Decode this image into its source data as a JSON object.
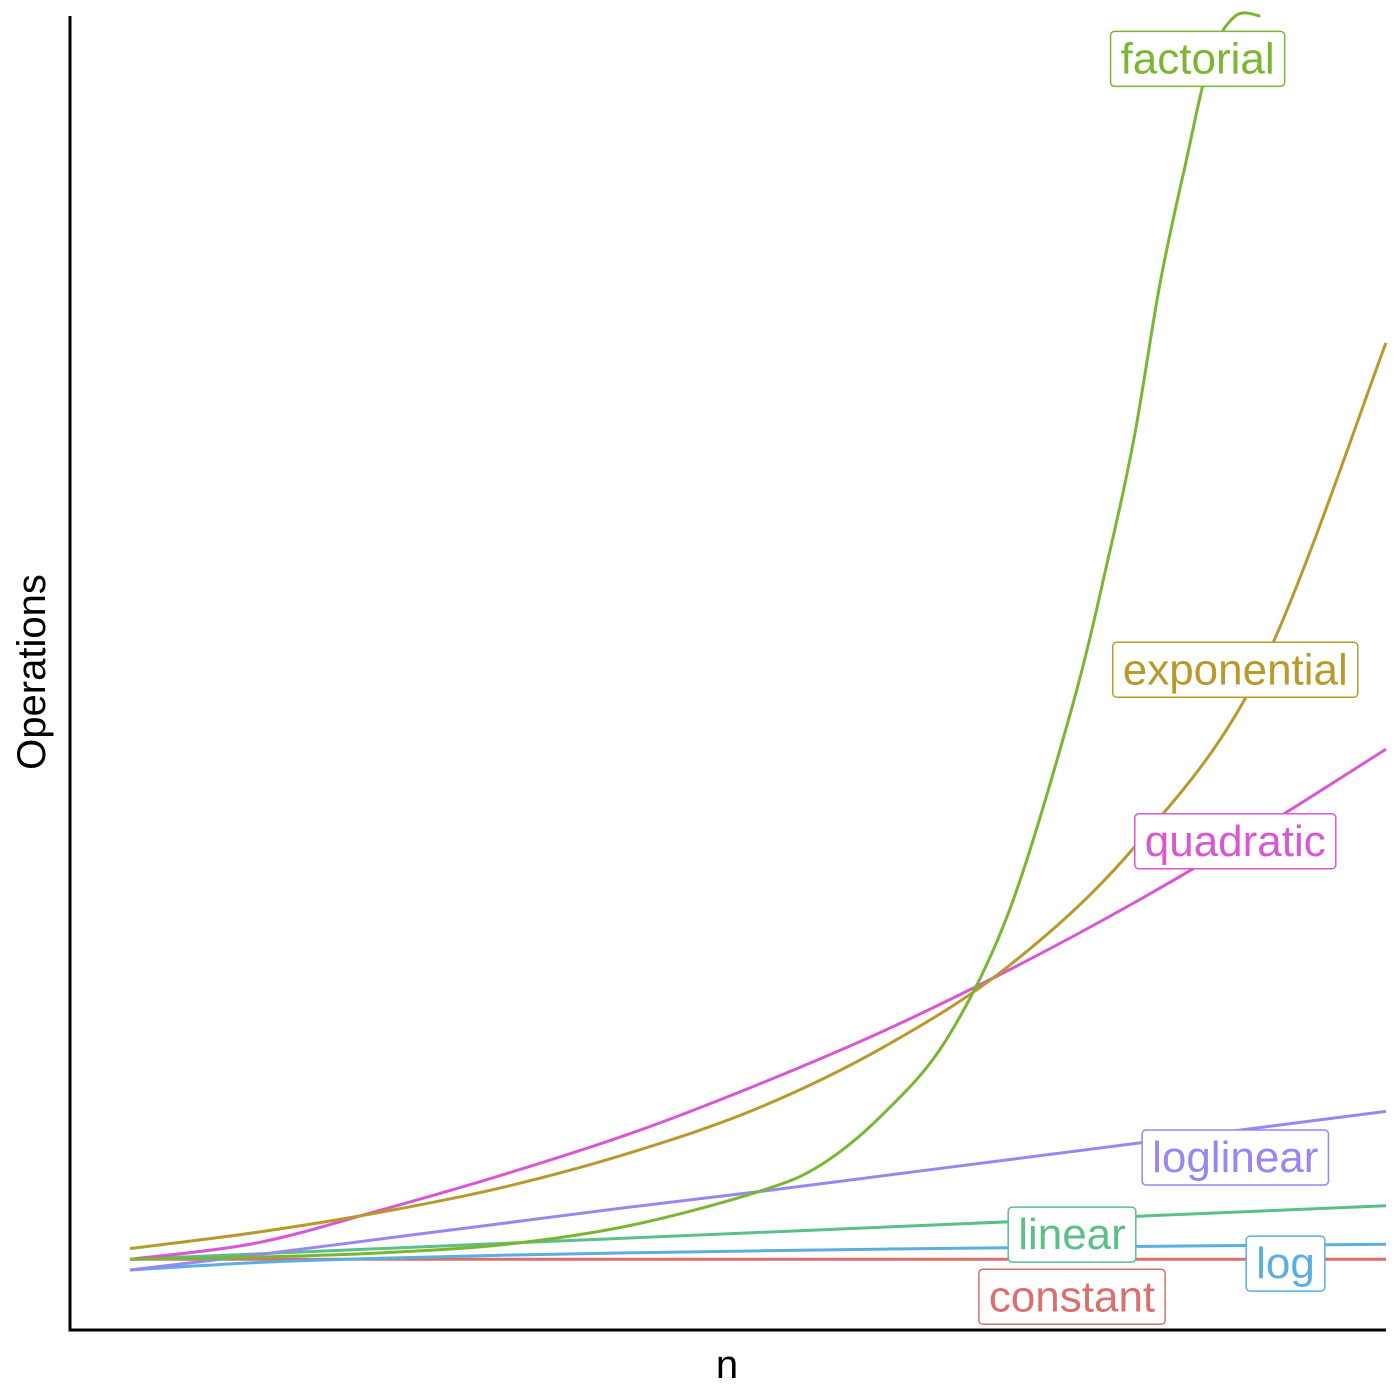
{
  "chart_data": {
    "type": "line",
    "title": "",
    "xlabel": "n",
    "ylabel": "Operations",
    "xlim": [
      0,
      10
    ],
    "ylim": [
      0,
      117
    ],
    "grid": false,
    "legend": "direct labels at right end of curves",
    "series": [
      {
        "name": "constant",
        "color": "#d9706e",
        "x": [
          0,
          10
        ],
        "y": [
          1,
          1
        ]
      },
      {
        "name": "log",
        "color": "#5aaee0",
        "x": [
          0,
          1,
          2,
          3,
          4,
          5,
          6,
          7,
          8,
          9,
          10
        ],
        "y": [
          0,
          0.69,
          1.1,
          1.39,
          1.61,
          1.79,
          1.95,
          2.08,
          2.2,
          2.3,
          2.4
        ]
      },
      {
        "name": "linear",
        "color": "#5bbf8a",
        "x": [
          0,
          10
        ],
        "y": [
          1,
          6
        ]
      },
      {
        "name": "loglinear",
        "color": "#9a86f0",
        "x": [
          0,
          1,
          2,
          3,
          4,
          5,
          6,
          7,
          8,
          9,
          10
        ],
        "y": [
          0,
          1.4,
          2.9,
          4.4,
          5.9,
          7.3,
          8.8,
          10.3,
          11.8,
          13.3,
          14.8
        ]
      },
      {
        "name": "quadratic",
        "color": "#d957d3",
        "x": [
          0,
          1,
          2,
          3,
          4,
          5,
          6,
          7,
          8,
          9,
          10
        ],
        "y": [
          1,
          2.5,
          5.6,
          9,
          12.8,
          17.3,
          22.3,
          28,
          34.3,
          41.2,
          48.6
        ]
      },
      {
        "name": "exponential",
        "color": "#b89a2c",
        "x": [
          0,
          1,
          2,
          3,
          4,
          5,
          6,
          7,
          8,
          9,
          10
        ],
        "y": [
          2,
          3.5,
          5.4,
          7.8,
          11,
          15.1,
          20.8,
          28.4,
          39.5,
          56,
          86.5
        ]
      },
      {
        "name": "factorial",
        "color": "#7ab632",
        "x": [
          0,
          1,
          2,
          3,
          4,
          5,
          5.5,
          6,
          6.5,
          7,
          7.5,
          7.8,
          8,
          8.2,
          8.4,
          8.6,
          8.8,
          9.0
        ],
        "y": [
          1,
          1.2,
          1.6,
          2.4,
          4.2,
          7.3,
          9.8,
          14.6,
          21.5,
          33.5,
          52.5,
          67,
          78,
          92,
          103,
          113,
          117,
          117
        ]
      }
    ],
    "labels": [
      {
        "series": "factorial",
        "text": "factorial",
        "x": 8.5,
        "y": 113
      },
      {
        "series": "exponential",
        "text": "exponential",
        "x": 8.8,
        "y": 56
      },
      {
        "series": "quadratic",
        "text": "quadratic",
        "x": 8.8,
        "y": 40
      },
      {
        "series": "loglinear",
        "text": "loglinear",
        "x": 8.8,
        "y": 10.5
      },
      {
        "series": "linear",
        "text": "linear",
        "x": 7.5,
        "y": 3.3
      },
      {
        "series": "log",
        "text": "log",
        "x": 9.2,
        "y": 0.6
      },
      {
        "series": "constant",
        "text": "constant",
        "x": 7.5,
        "y": -2.5
      }
    ]
  }
}
